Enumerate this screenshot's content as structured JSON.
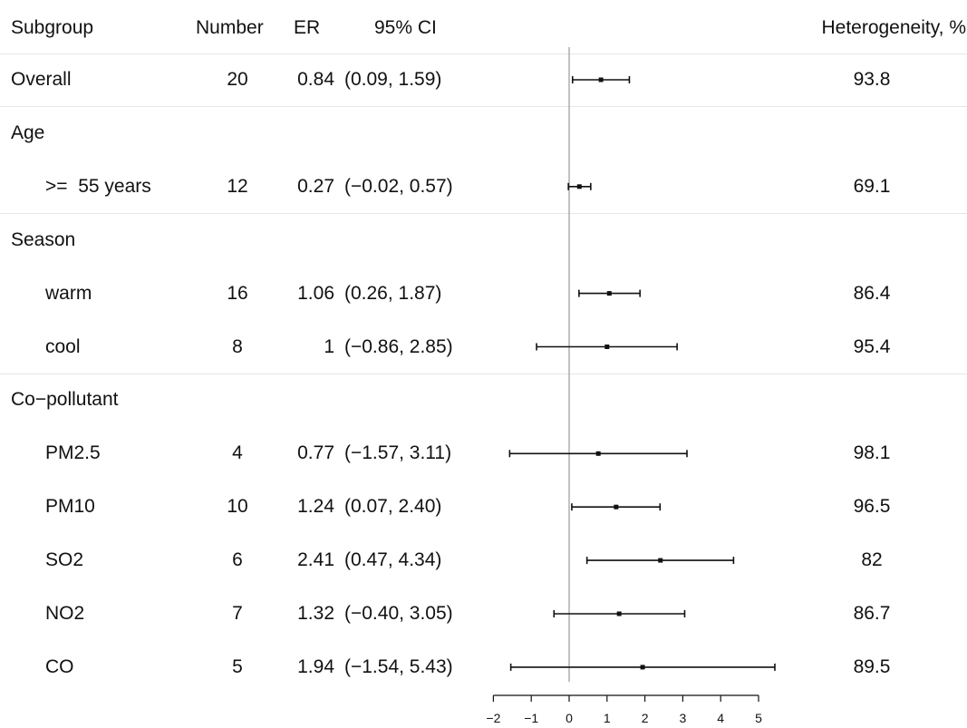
{
  "chart_data": {
    "type": "forest",
    "headers": {
      "subgroup": "Subgroup",
      "number": "Number",
      "er": "ER",
      "ci": "95% CI",
      "heterogeneity": "Heterogeneity, %"
    },
    "rows": [
      {
        "label": "Overall",
        "indent": false,
        "number": "20",
        "er": "0.84",
        "ci": "(0.09, 1.59)",
        "est": 0.84,
        "lo": 0.09,
        "hi": 1.59,
        "het": "93.8"
      },
      {
        "label": "Age",
        "indent": false,
        "group": true
      },
      {
        "label": ">=  55 years",
        "indent": true,
        "number": "12",
        "er": "0.27",
        "ci": "(−0.02, 0.57)",
        "est": 0.27,
        "lo": -0.02,
        "hi": 0.57,
        "het": "69.1"
      },
      {
        "label": "Season",
        "indent": false,
        "group": true
      },
      {
        "label": "warm",
        "indent": true,
        "number": "16",
        "er": "1.06",
        "ci": "(0.26, 1.87)",
        "est": 1.06,
        "lo": 0.26,
        "hi": 1.87,
        "het": "86.4"
      },
      {
        "label": "cool",
        "indent": true,
        "number": "8",
        "er": "1",
        "ci": "(−0.86, 2.85)",
        "est": 1.0,
        "lo": -0.86,
        "hi": 2.85,
        "het": "95.4"
      },
      {
        "label": "Co−pollutant",
        "indent": false,
        "group": true
      },
      {
        "label": "PM2.5",
        "indent": true,
        "number": "4",
        "er": "0.77",
        "ci": "(−1.57, 3.11)",
        "est": 0.77,
        "lo": -1.57,
        "hi": 3.11,
        "het": "98.1"
      },
      {
        "label": "PM10",
        "indent": true,
        "number": "10",
        "er": "1.24",
        "ci": "(0.07, 2.40)",
        "est": 1.24,
        "lo": 0.07,
        "hi": 2.4,
        "het": "96.5"
      },
      {
        "label": "SO2",
        "indent": true,
        "number": "6",
        "er": "2.41",
        "ci": "(0.47, 4.34)",
        "est": 2.41,
        "lo": 0.47,
        "hi": 4.34,
        "het": "82"
      },
      {
        "label": "NO2",
        "indent": true,
        "number": "7",
        "er": "1.32",
        "ci": "(−0.40, 3.05)",
        "est": 1.32,
        "lo": -0.4,
        "hi": 3.05,
        "het": "86.7"
      },
      {
        "label": "CO",
        "indent": true,
        "number": "5",
        "er": "1.94",
        "ci": "(−1.54, 5.43)",
        "est": 1.94,
        "lo": -1.54,
        "hi": 5.43,
        "het": "89.5"
      }
    ],
    "x_ticks": [
      {
        "value": -2,
        "label": "−2"
      },
      {
        "value": -1,
        "label": "−1"
      },
      {
        "value": 0,
        "label": "0"
      },
      {
        "value": 1,
        "label": "1"
      },
      {
        "value": 2,
        "label": "2"
      },
      {
        "value": 3,
        "label": "3"
      },
      {
        "value": 4,
        "label": "4"
      },
      {
        "value": 5,
        "label": "5"
      }
    ],
    "xlim": [
      -2,
      5
    ],
    "reference_line": 0,
    "separators_after_rows": [
      0,
      2,
      5
    ]
  }
}
